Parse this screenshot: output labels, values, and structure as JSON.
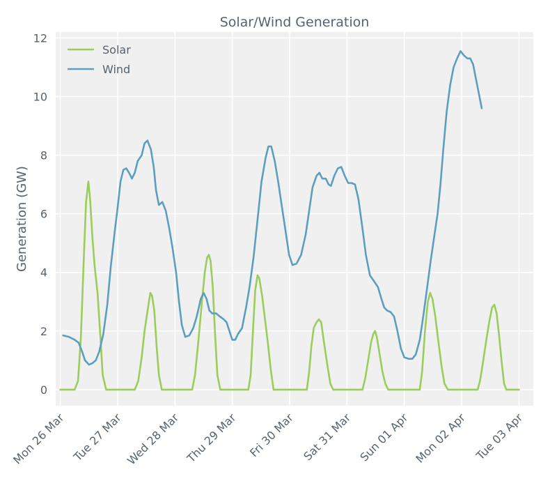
{
  "chart_data": {
    "type": "line",
    "title": "Solar/Wind Generation",
    "xlabel": "",
    "ylabel": "Generation (GW)",
    "x_ticks": [
      "Mon 26 Mar",
      "Tue 27 Mar",
      "Wed 28 Mar",
      "Thu 29 Mar",
      "Fri 30 Mar",
      "Sat 31 Mar",
      "Sun 01 Apr",
      "Mon 02 Apr",
      "Tue 03 Apr"
    ],
    "y_ticks": [
      "0",
      "2",
      "4",
      "6",
      "8",
      "10",
      "12"
    ],
    "xlim": [
      -0.08,
      8.25
    ],
    "ylim": [
      -0.55,
      12.2
    ],
    "grid": true,
    "legend_position": "top-left",
    "colors": {
      "solar": "#9acd5a",
      "wind": "#5b9ec0",
      "background": "#f0f0f0",
      "grid": "#ffffff"
    },
    "series": [
      {
        "name": "Solar",
        "color": "#9acd5a",
        "points": [
          [
            0,
            0
          ],
          [
            0.25,
            0
          ],
          [
            0.31,
            0.3
          ],
          [
            0.36,
            1.8
          ],
          [
            0.41,
            4.5
          ],
          [
            0.45,
            6.4
          ],
          [
            0.49,
            7.1
          ],
          [
            0.52,
            6.5
          ],
          [
            0.56,
            5.2
          ],
          [
            0.6,
            4.2
          ],
          [
            0.65,
            3.3
          ],
          [
            0.7,
            1.8
          ],
          [
            0.74,
            0.5
          ],
          [
            0.8,
            0
          ],
          [
            1,
            0
          ],
          [
            1.3,
            0
          ],
          [
            1.36,
            0.3
          ],
          [
            1.42,
            1.1
          ],
          [
            1.47,
            2.0
          ],
          [
            1.53,
            2.8
          ],
          [
            1.57,
            3.3
          ],
          [
            1.6,
            3.2
          ],
          [
            1.64,
            2.7
          ],
          [
            1.68,
            1.5
          ],
          [
            1.72,
            0.5
          ],
          [
            1.77,
            0
          ],
          [
            2,
            0
          ],
          [
            2.3,
            0
          ],
          [
            2.35,
            0.5
          ],
          [
            2.41,
            1.7
          ],
          [
            2.47,
            3.0
          ],
          [
            2.52,
            4.0
          ],
          [
            2.56,
            4.5
          ],
          [
            2.59,
            4.6
          ],
          [
            2.62,
            4.4
          ],
          [
            2.66,
            3.5
          ],
          [
            2.7,
            1.9
          ],
          [
            2.74,
            0.5
          ],
          [
            2.79,
            0
          ],
          [
            3,
            0
          ],
          [
            3.28,
            0
          ],
          [
            3.32,
            0.5
          ],
          [
            3.36,
            2.0
          ],
          [
            3.4,
            3.4
          ],
          [
            3.44,
            3.9
          ],
          [
            3.47,
            3.8
          ],
          [
            3.52,
            3.2
          ],
          [
            3.57,
            2.4
          ],
          [
            3.62,
            1.6
          ],
          [
            3.67,
            0.7
          ],
          [
            3.72,
            0
          ],
          [
            4,
            0
          ],
          [
            4.3,
            0
          ],
          [
            4.34,
            0.6
          ],
          [
            4.38,
            1.5
          ],
          [
            4.42,
            2.1
          ],
          [
            4.47,
            2.3
          ],
          [
            4.51,
            2.4
          ],
          [
            4.55,
            2.3
          ],
          [
            4.6,
            1.6
          ],
          [
            4.66,
            0.8
          ],
          [
            4.71,
            0.2
          ],
          [
            4.76,
            0
          ],
          [
            5,
            0
          ],
          [
            5.27,
            0
          ],
          [
            5.32,
            0.4
          ],
          [
            5.37,
            1.0
          ],
          [
            5.42,
            1.6
          ],
          [
            5.46,
            1.9
          ],
          [
            5.49,
            2.0
          ],
          [
            5.52,
            1.8
          ],
          [
            5.57,
            1.2
          ],
          [
            5.62,
            0.6
          ],
          [
            5.67,
            0.2
          ],
          [
            5.72,
            0
          ],
          [
            6,
            0
          ],
          [
            6.27,
            0
          ],
          [
            6.31,
            0.6
          ],
          [
            6.36,
            2.0
          ],
          [
            6.41,
            3.0
          ],
          [
            6.45,
            3.3
          ],
          [
            6.49,
            3.1
          ],
          [
            6.54,
            2.5
          ],
          [
            6.59,
            1.7
          ],
          [
            6.65,
            0.8
          ],
          [
            6.7,
            0.2
          ],
          [
            6.76,
            0
          ],
          [
            7,
            0
          ],
          [
            7.28,
            0
          ],
          [
            7.32,
            0.3
          ],
          [
            7.37,
            0.9
          ],
          [
            7.43,
            1.7
          ],
          [
            7.48,
            2.3
          ],
          [
            7.53,
            2.8
          ],
          [
            7.57,
            2.9
          ],
          [
            7.61,
            2.6
          ],
          [
            7.65,
            1.9
          ],
          [
            7.7,
            0.9
          ],
          [
            7.74,
            0.2
          ],
          [
            7.78,
            0
          ],
          [
            8,
            0
          ]
        ]
      },
      {
        "name": "Wind",
        "color": "#5b9ec0",
        "points": [
          [
            0.05,
            1.85
          ],
          [
            0.15,
            1.8
          ],
          [
            0.25,
            1.7
          ],
          [
            0.32,
            1.6
          ],
          [
            0.38,
            1.3
          ],
          [
            0.43,
            1.0
          ],
          [
            0.5,
            0.85
          ],
          [
            0.56,
            0.9
          ],
          [
            0.62,
            1.0
          ],
          [
            0.68,
            1.3
          ],
          [
            0.75,
            1.9
          ],
          [
            0.82,
            2.9
          ],
          [
            0.88,
            4.2
          ],
          [
            0.95,
            5.4
          ],
          [
            1.0,
            6.2
          ],
          [
            1.05,
            7.1
          ],
          [
            1.1,
            7.5
          ],
          [
            1.15,
            7.55
          ],
          [
            1.2,
            7.4
          ],
          [
            1.25,
            7.2
          ],
          [
            1.3,
            7.4
          ],
          [
            1.35,
            7.8
          ],
          [
            1.42,
            8.0
          ],
          [
            1.47,
            8.4
          ],
          [
            1.52,
            8.5
          ],
          [
            1.58,
            8.2
          ],
          [
            1.63,
            7.6
          ],
          [
            1.67,
            6.8
          ],
          [
            1.72,
            6.3
          ],
          [
            1.78,
            6.4
          ],
          [
            1.84,
            6.1
          ],
          [
            1.9,
            5.5
          ],
          [
            1.96,
            4.8
          ],
          [
            2.02,
            4.0
          ],
          [
            2.07,
            3.0
          ],
          [
            2.12,
            2.2
          ],
          [
            2.18,
            1.8
          ],
          [
            2.25,
            1.85
          ],
          [
            2.32,
            2.1
          ],
          [
            2.38,
            2.5
          ],
          [
            2.45,
            3.1
          ],
          [
            2.5,
            3.3
          ],
          [
            2.55,
            3.1
          ],
          [
            2.6,
            2.7
          ],
          [
            2.65,
            2.6
          ],
          [
            2.72,
            2.6
          ],
          [
            2.78,
            2.5
          ],
          [
            2.85,
            2.4
          ],
          [
            2.9,
            2.3
          ],
          [
            2.95,
            2.0
          ],
          [
            3.0,
            1.7
          ],
          [
            3.05,
            1.7
          ],
          [
            3.1,
            1.9
          ],
          [
            3.17,
            2.1
          ],
          [
            3.24,
            2.8
          ],
          [
            3.3,
            3.5
          ],
          [
            3.37,
            4.5
          ],
          [
            3.44,
            5.8
          ],
          [
            3.51,
            7.1
          ],
          [
            3.58,
            7.9
          ],
          [
            3.63,
            8.3
          ],
          [
            3.68,
            8.3
          ],
          [
            3.74,
            7.8
          ],
          [
            3.8,
            7.1
          ],
          [
            3.86,
            6.3
          ],
          [
            3.93,
            5.4
          ],
          [
            3.99,
            4.6
          ],
          [
            4.05,
            4.25
          ],
          [
            4.12,
            4.3
          ],
          [
            4.2,
            4.6
          ],
          [
            4.28,
            5.3
          ],
          [
            4.34,
            6.1
          ],
          [
            4.4,
            6.9
          ],
          [
            4.47,
            7.3
          ],
          [
            4.52,
            7.4
          ],
          [
            4.57,
            7.2
          ],
          [
            4.63,
            7.2
          ],
          [
            4.68,
            7.0
          ],
          [
            4.72,
            6.95
          ],
          [
            4.78,
            7.3
          ],
          [
            4.84,
            7.55
          ],
          [
            4.9,
            7.6
          ],
          [
            4.96,
            7.3
          ],
          [
            5.02,
            7.05
          ],
          [
            5.08,
            7.05
          ],
          [
            5.14,
            7.0
          ],
          [
            5.2,
            6.5
          ],
          [
            5.27,
            5.5
          ],
          [
            5.33,
            4.6
          ],
          [
            5.4,
            3.9
          ],
          [
            5.47,
            3.7
          ],
          [
            5.54,
            3.5
          ],
          [
            5.6,
            3.1
          ],
          [
            5.65,
            2.8
          ],
          [
            5.7,
            2.7
          ],
          [
            5.76,
            2.65
          ],
          [
            5.82,
            2.5
          ],
          [
            5.88,
            2.0
          ],
          [
            5.94,
            1.4
          ],
          [
            6.0,
            1.1
          ],
          [
            6.08,
            1.05
          ],
          [
            6.14,
            1.05
          ],
          [
            6.2,
            1.2
          ],
          [
            6.27,
            1.7
          ],
          [
            6.33,
            2.5
          ],
          [
            6.4,
            3.5
          ],
          [
            6.46,
            4.4
          ],
          [
            6.52,
            5.2
          ],
          [
            6.58,
            6.0
          ],
          [
            6.63,
            7.0
          ],
          [
            6.68,
            8.2
          ],
          [
            6.74,
            9.5
          ],
          [
            6.8,
            10.4
          ],
          [
            6.86,
            11.0
          ],
          [
            6.92,
            11.3
          ],
          [
            6.98,
            11.55
          ],
          [
            7.04,
            11.4
          ],
          [
            7.1,
            11.3
          ],
          [
            7.15,
            11.3
          ],
          [
            7.2,
            11.1
          ],
          [
            7.25,
            10.6
          ],
          [
            7.3,
            10.1
          ],
          [
            7.35,
            9.6
          ]
        ]
      }
    ]
  }
}
